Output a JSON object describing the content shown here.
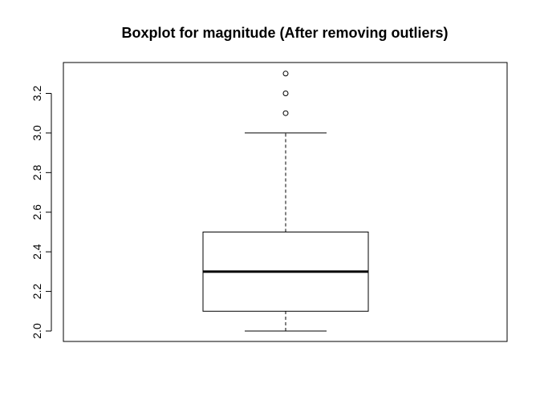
{
  "chart_data": {
    "type": "boxplot",
    "title": "Boxplot for magnitude (After removing outliers)",
    "xlabel": "",
    "ylabel": "",
    "ylim": [
      1.95,
      3.35
    ],
    "yticks": [
      2.0,
      2.2,
      2.4,
      2.6,
      2.8,
      3.0,
      3.2
    ],
    "ytick_labels": [
      "2.0",
      "2.2",
      "2.4",
      "2.6",
      "2.8",
      "3.0",
      "3.2"
    ],
    "box": {
      "whisker_low": 2.0,
      "q1": 2.1,
      "median": 2.3,
      "q3": 2.5,
      "whisker_high": 3.0
    },
    "outliers": [
      3.1,
      3.2,
      3.3
    ],
    "grid": false,
    "colors": {
      "box_stroke": "#000000",
      "box_fill": "#ffffff",
      "background": "#ffffff"
    }
  }
}
